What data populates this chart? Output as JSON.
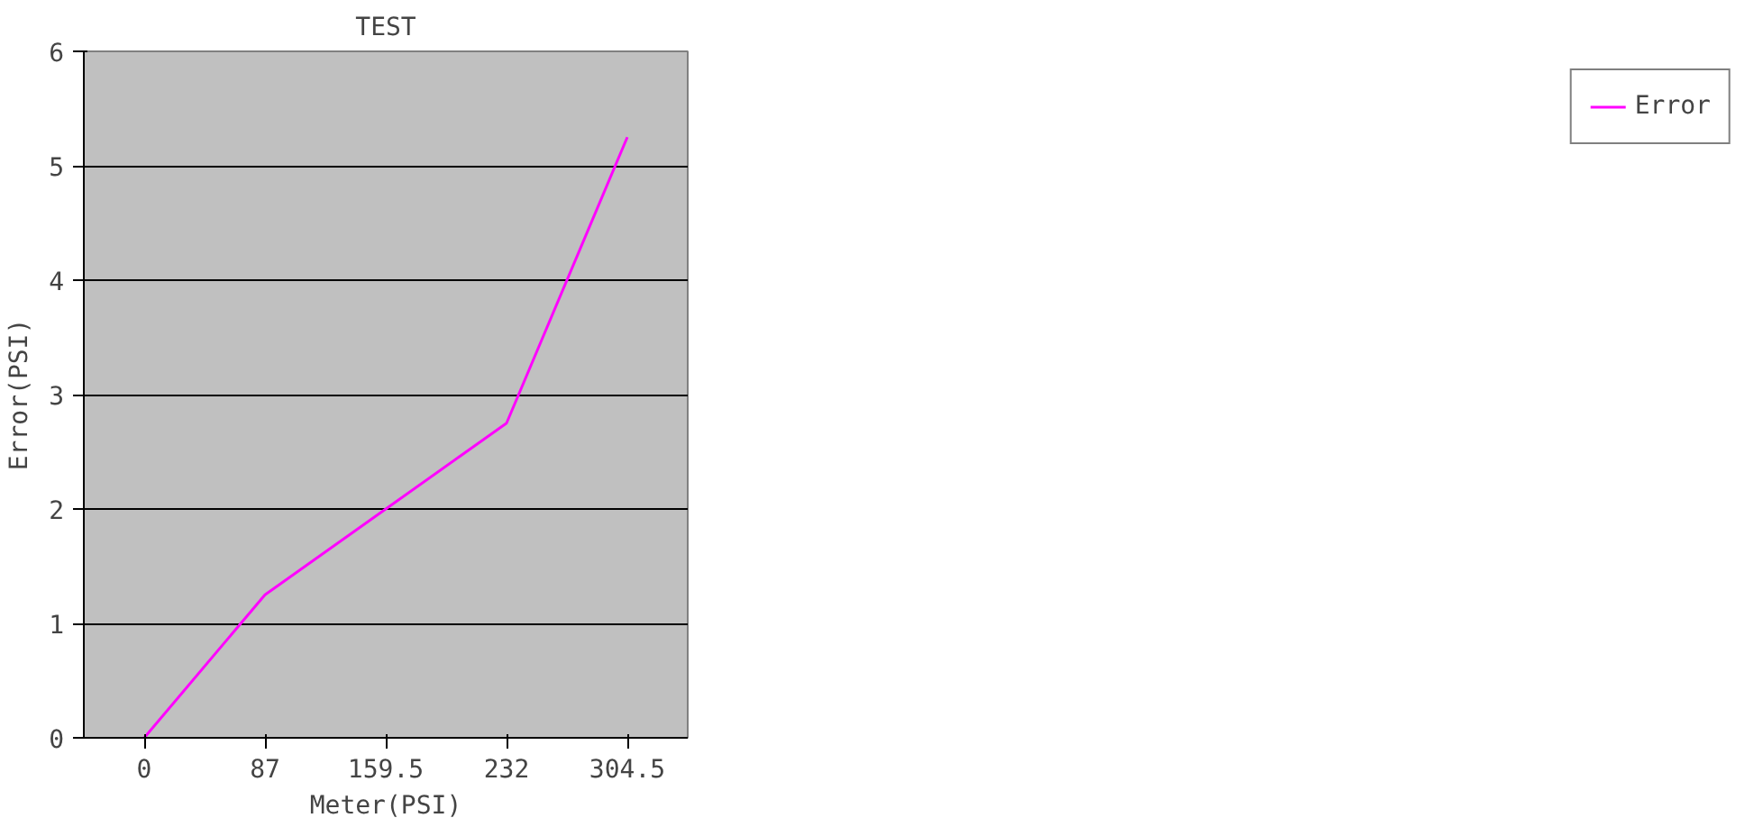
{
  "chart_data": {
    "type": "line",
    "title": "TEST",
    "xlabel": "Meter(PSI)",
    "ylabel": "Error(PSI)",
    "categories": [
      "0",
      "87",
      "159.5",
      "232",
      "304.5"
    ],
    "series": [
      {
        "name": "Error",
        "color": "#ff00ff",
        "values": [
          0,
          1.25,
          2.0,
          2.75,
          5.25
        ]
      }
    ],
    "ylim": [
      0,
      6
    ],
    "yticks": [
      0,
      1,
      2,
      3,
      4,
      5,
      6
    ],
    "grid": "y",
    "legend": "right",
    "marker": "none",
    "line_style": "solid"
  }
}
